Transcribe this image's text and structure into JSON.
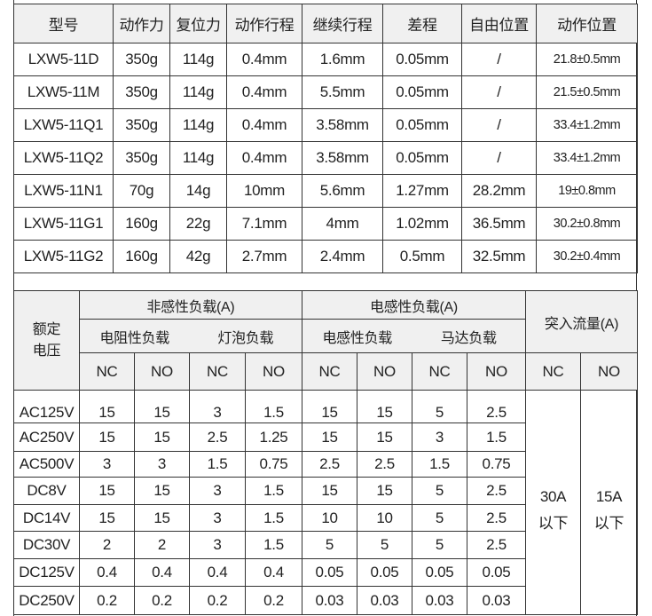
{
  "spec_table": {
    "headers": [
      "型号",
      "动作力",
      "复位力",
      "动作行程",
      "继续行程",
      "差程",
      "自由位置",
      "动作位置"
    ],
    "rows": [
      [
        "LXW5-11D",
        "350g",
        "114g",
        "0.4mm",
        "1.6mm",
        "0.05mm",
        "/",
        "21.8±0.5mm"
      ],
      [
        "LXW5-11M",
        "350g",
        "114g",
        "0.4mm",
        "5.5mm",
        "0.05mm",
        "/",
        "21.5±0.5mm"
      ],
      [
        "LXW5-11Q1",
        "350g",
        "114g",
        "0.4mm",
        "3.58mm",
        "0.05mm",
        "/",
        "33.4±1.2mm"
      ],
      [
        "LXW5-11Q2",
        "350g",
        "114g",
        "0.4mm",
        "3.58mm",
        "0.05mm",
        "/",
        "33.4±1.2mm"
      ],
      [
        "LXW5-11N1",
        "70g",
        "14g",
        "10mm",
        "5.6mm",
        "1.27mm",
        "28.2mm",
        "19±0.8mm"
      ],
      [
        "LXW5-11G1",
        "160g",
        "22g",
        "7.1mm",
        "4mm",
        "1.02mm",
        "36.5mm",
        "30.2±0.8mm"
      ],
      [
        "LXW5-11G2",
        "160g",
        "42g",
        "2.7mm",
        "2.4mm",
        "0.5mm",
        "32.5mm",
        "30.2±0.4mm"
      ]
    ]
  },
  "load_table": {
    "rated_voltage": "额定\n电压",
    "group_noninductive": "非感性负载(A)",
    "group_inductive": "电感性负载(A)",
    "inrush": "突入流量(A)",
    "sub_resistive": "电阻性负载",
    "sub_lamp": "灯泡负载",
    "sub_inductive": "电感性负载",
    "sub_motor": "马达负载",
    "contact_labels": [
      "NC",
      "NO",
      "NC",
      "NO",
      "NC",
      "NO",
      "NC",
      "NO",
      "NC",
      "NO"
    ],
    "rows": [
      [
        "AC125V",
        "15",
        "15",
        "3",
        "1.5",
        "15",
        "15",
        "5",
        "2.5"
      ],
      [
        "AC250V",
        "15",
        "15",
        "2.5",
        "1.25",
        "15",
        "15",
        "3",
        "1.5"
      ],
      [
        "AC500V",
        "3",
        "3",
        "1.5",
        "0.75",
        "2.5",
        "2.5",
        "1.5",
        "0.75"
      ],
      [
        "DC8V",
        "15",
        "15",
        "3",
        "1.5",
        "15",
        "15",
        "5",
        "2.5"
      ],
      [
        "DC14V",
        "15",
        "15",
        "3",
        "1.5",
        "10",
        "10",
        "5",
        "2.5"
      ],
      [
        "DC30V",
        "2",
        "2",
        "3",
        "1.5",
        "5",
        "5",
        "5",
        "2.5"
      ],
      [
        "DC125V",
        "0.4",
        "0.4",
        "0.4",
        "0.4",
        "0.05",
        "0.05",
        "0.05",
        "0.05"
      ],
      [
        "DC250V",
        "0.2",
        "0.2",
        "0.2",
        "0.2",
        "0.03",
        "0.03",
        "0.03",
        "0.03"
      ]
    ],
    "inrush_nc": "30A\n以下",
    "inrush_no": "15A\n以下"
  }
}
